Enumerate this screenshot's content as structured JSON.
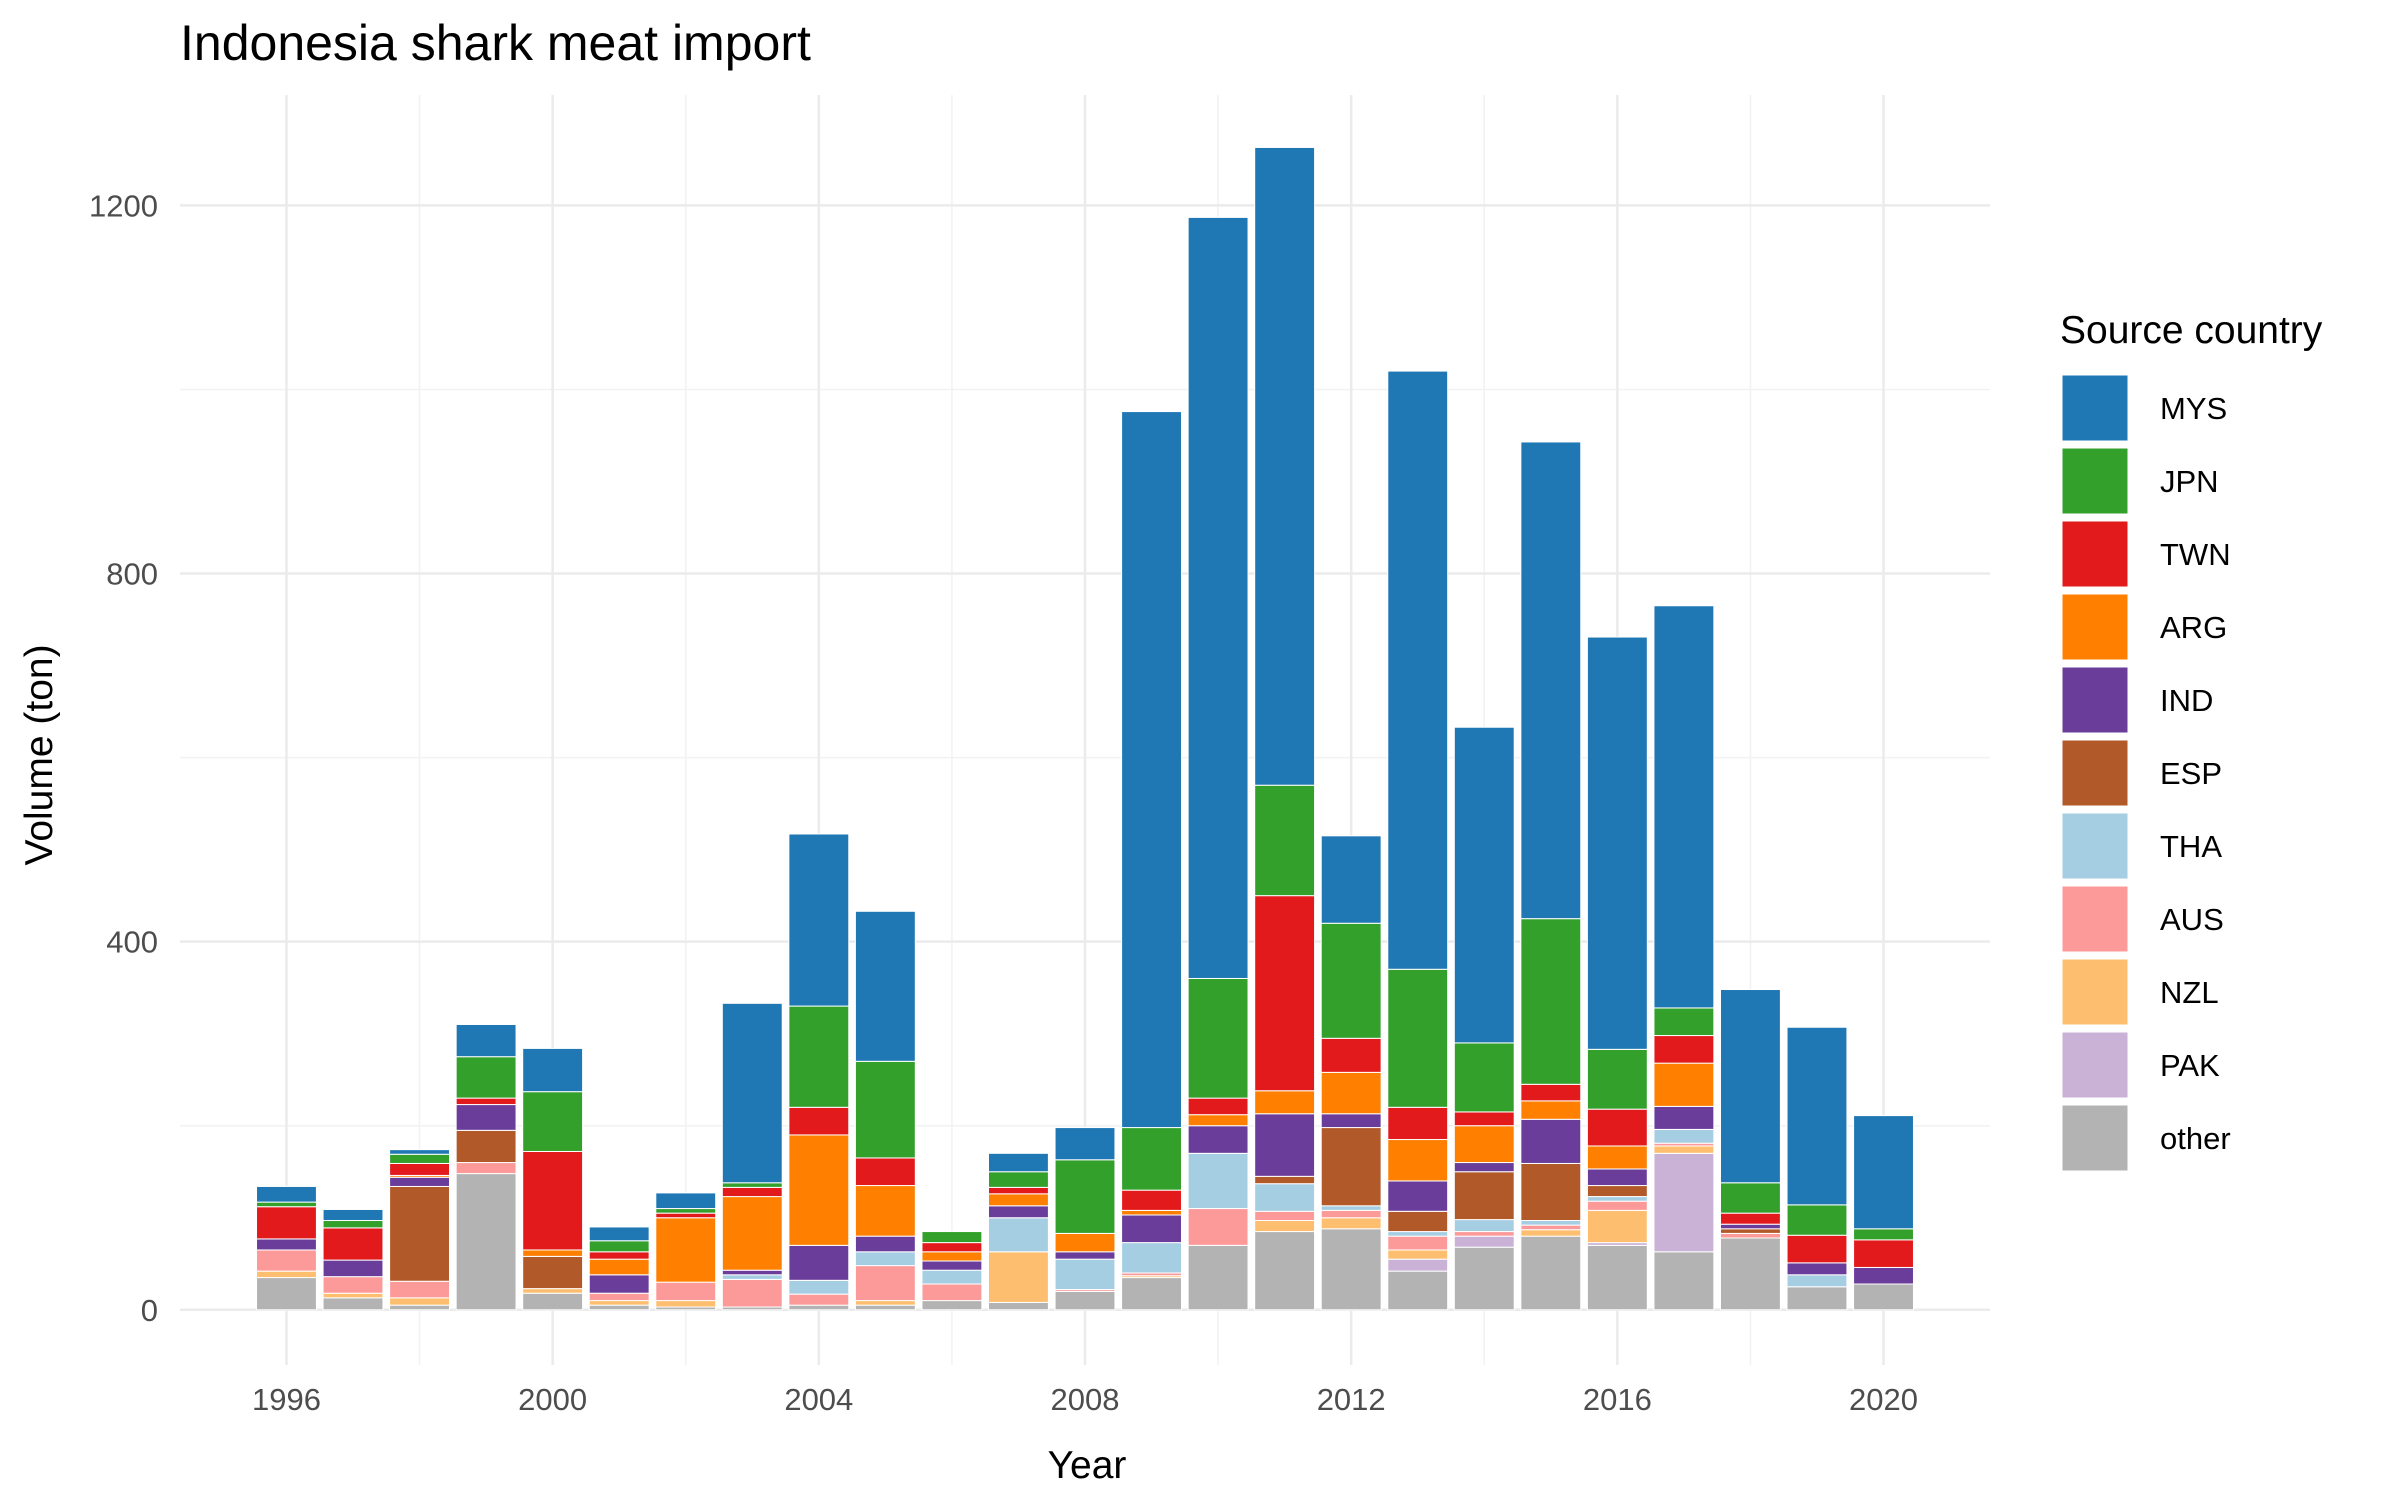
{
  "chart_data": {
    "type": "bar",
    "stacked": true,
    "title": "Indonesia shark meat import",
    "xlabel": "Year",
    "ylabel": "Volume (ton)",
    "xlim": [
      1994.4,
      2021.6
    ],
    "ylim": [
      -60,
      1320
    ],
    "x_ticks": [
      1996,
      2000,
      2004,
      2008,
      2012,
      2016,
      2020
    ],
    "y_ticks": [
      0,
      400,
      800,
      1200
    ],
    "grid": true,
    "legend_title": "Source country",
    "legend_position": "right",
    "x": [
      1996,
      1997,
      1998,
      1999,
      2000,
      2001,
      2002,
      2003,
      2004,
      2005,
      2006,
      2007,
      2008,
      2009,
      2010,
      2011,
      2012,
      2013,
      2014,
      2015,
      2016,
      2017,
      2018,
      2019,
      2020
    ],
    "series": [
      {
        "name": "other",
        "color": "#b3b3b3",
        "values": [
          35,
          13,
          5,
          148,
          18,
          5,
          3,
          3,
          5,
          5,
          10,
          8,
          20,
          35,
          70,
          85,
          88,
          42,
          68,
          80,
          70,
          63,
          78,
          25,
          28
        ]
      },
      {
        "name": "PAK",
        "color": "#cab2d6",
        "values": [
          0,
          0,
          0,
          0,
          0,
          0,
          0,
          0,
          0,
          0,
          0,
          0,
          0,
          0,
          0,
          0,
          0,
          13,
          12,
          0,
          3,
          107,
          0,
          0,
          0
        ]
      },
      {
        "name": "NZL",
        "color": "#fdbf6f",
        "values": [
          7,
          5,
          8,
          0,
          5,
          5,
          7,
          0,
          0,
          5,
          0,
          55,
          0,
          2,
          0,
          12,
          12,
          10,
          0,
          7,
          35,
          8,
          0,
          0,
          0
        ]
      },
      {
        "name": "AUS",
        "color": "#fb9a99",
        "values": [
          23,
          18,
          18,
          12,
          0,
          8,
          20,
          30,
          12,
          38,
          18,
          0,
          2,
          3,
          40,
          10,
          8,
          15,
          5,
          5,
          10,
          3,
          5,
          0,
          0
        ]
      },
      {
        "name": "THA",
        "color": "#a6cee3",
        "values": [
          0,
          0,
          0,
          0,
          0,
          0,
          0,
          5,
          15,
          15,
          15,
          37,
          33,
          33,
          60,
          30,
          5,
          5,
          13,
          5,
          5,
          15,
          0,
          13,
          0
        ]
      },
      {
        "name": "ESP",
        "color": "#b15928",
        "values": [
          0,
          0,
          103,
          35,
          35,
          0,
          0,
          0,
          0,
          0,
          0,
          0,
          0,
          0,
          0,
          8,
          85,
          22,
          52,
          62,
          12,
          0,
          5,
          0,
          0
        ]
      },
      {
        "name": "IND",
        "color": "#6a3d9a",
        "values": [
          12,
          18,
          10,
          28,
          0,
          20,
          0,
          5,
          38,
          17,
          10,
          13,
          8,
          30,
          30,
          68,
          15,
          33,
          10,
          48,
          18,
          25,
          5,
          13,
          18
        ]
      },
      {
        "name": "ARG",
        "color": "#ff7f00",
        "values": [
          0,
          0,
          2,
          0,
          7,
          17,
          70,
          80,
          120,
          55,
          10,
          13,
          20,
          5,
          12,
          25,
          45,
          45,
          40,
          20,
          25,
          47,
          0,
          0,
          0
        ]
      },
      {
        "name": "TWN",
        "color": "#e31a1c",
        "values": [
          35,
          35,
          13,
          7,
          107,
          8,
          5,
          10,
          30,
          30,
          10,
          7,
          0,
          22,
          18,
          212,
          37,
          35,
          15,
          18,
          40,
          30,
          12,
          30,
          30
        ]
      },
      {
        "name": "JPN",
        "color": "#33a02c",
        "values": [
          5,
          8,
          10,
          45,
          65,
          12,
          5,
          5,
          110,
          105,
          12,
          17,
          80,
          68,
          130,
          120,
          125,
          150,
          75,
          180,
          65,
          30,
          33,
          33,
          12
        ]
      },
      {
        "name": "MYS",
        "color": "#1f78b4",
        "values": [
          17,
          12,
          5,
          35,
          47,
          15,
          17,
          195,
          187,
          163,
          0,
          20,
          35,
          778,
          827,
          693,
          95,
          650,
          343,
          518,
          448,
          437,
          210,
          193,
          123
        ]
      }
    ],
    "legend_order": [
      "MYS",
      "JPN",
      "TWN",
      "ARG",
      "IND",
      "ESP",
      "THA",
      "AUS",
      "NZL",
      "PAK",
      "other"
    ]
  }
}
